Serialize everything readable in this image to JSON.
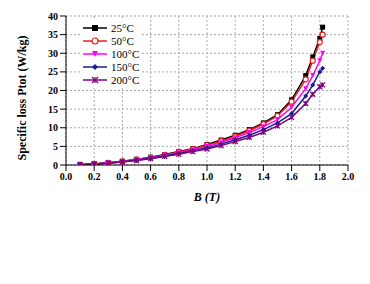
{
  "chart_data": {
    "type": "line",
    "xlabel": "B (T)",
    "ylabel": "Specific loss Ptot (W/kg)",
    "x": [
      0.1,
      0.2,
      0.3,
      0.4,
      0.5,
      0.6,
      0.7,
      0.8,
      0.9,
      1.0,
      1.1,
      1.2,
      1.3,
      1.4,
      1.5,
      1.6,
      1.7,
      1.75,
      1.8,
      1.82
    ],
    "series": [
      {
        "name": "25°C",
        "color": "#000000",
        "marker": "square",
        "values": [
          0.1,
          0.3,
          0.6,
          1.0,
          1.5,
          2.1,
          2.8,
          3.6,
          4.4,
          5.5,
          6.7,
          8.0,
          9.5,
          11.3,
          13.5,
          17.5,
          24,
          29,
          34,
          37
        ]
      },
      {
        "name": "50°C",
        "color": "#e8201c",
        "marker": "circle",
        "values": [
          0.1,
          0.3,
          0.6,
          1.0,
          1.5,
          2.0,
          2.7,
          3.5,
          4.3,
          5.3,
          6.4,
          7.7,
          9.2,
          11.0,
          13.2,
          17.0,
          23,
          28,
          33,
          35
        ]
      },
      {
        "name": "100°C",
        "color": "#ff00ff",
        "marker": "triangle",
        "values": [
          0.1,
          0.3,
          0.6,
          0.9,
          1.4,
          1.9,
          2.6,
          3.3,
          4.1,
          5.0,
          6.0,
          7.3,
          8.7,
          10.3,
          12.2,
          15.5,
          20.5,
          24,
          28,
          30
        ]
      },
      {
        "name": "150°C",
        "color": "#1c1c90",
        "marker": "diamond",
        "values": [
          0.1,
          0.3,
          0.5,
          0.9,
          1.3,
          1.8,
          2.4,
          3.1,
          3.8,
          4.6,
          5.6,
          6.8,
          8.0,
          9.5,
          11.3,
          13.8,
          18.5,
          21.5,
          25,
          26
        ]
      },
      {
        "name": "200°C",
        "color": "#800080",
        "marker": "star",
        "values": [
          0.1,
          0.3,
          0.5,
          0.8,
          1.2,
          1.7,
          2.3,
          2.9,
          3.6,
          4.3,
          5.2,
          6.3,
          7.4,
          8.8,
          10.5,
          12.8,
          16.5,
          19,
          21,
          21.5
        ]
      }
    ],
    "xlim": [
      0,
      2
    ],
    "xticks": [
      {
        "value": 0,
        "label": "0.0"
      },
      0.2,
      0.4,
      0.6,
      0.8,
      {
        "value": 1,
        "label": "1.0"
      },
      1.2,
      1.4,
      1.6,
      1.8,
      {
        "value": 2,
        "label": "2.0"
      }
    ],
    "ylim": [
      0,
      40
    ],
    "yticks": [
      0,
      5,
      10,
      15,
      20,
      25,
      30,
      35,
      40
    ],
    "grid": true,
    "legend": "upper left"
  }
}
